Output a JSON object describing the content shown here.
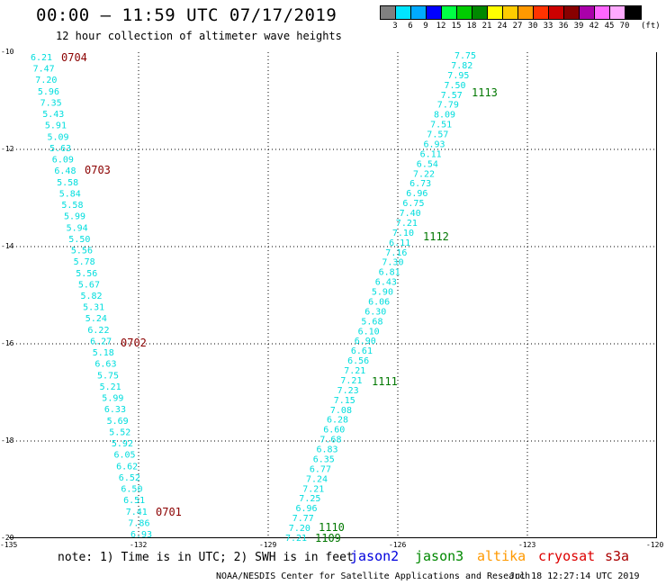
{
  "header": {
    "title": "00:00 – 11:59 UTC 07/17/2019",
    "subtitle": "12 hour collection of altimeter wave heights"
  },
  "colorbar": {
    "colors": [
      "#808080",
      "#00e5ff",
      "#00aaff",
      "#0000ff",
      "#00ff44",
      "#00cc00",
      "#008800",
      "#ffff00",
      "#ffcc00",
      "#ff9900",
      "#ff3300",
      "#cc0000",
      "#880000",
      "#aa00aa",
      "#ff66ff",
      "#ffaaff",
      "#000000"
    ],
    "labels": [
      "3",
      "6",
      "9",
      "12",
      "15",
      "18",
      "21",
      "24",
      "27",
      "30",
      "33",
      "36",
      "39",
      "42",
      "45",
      "70"
    ],
    "unit": "(ft)"
  },
  "axes": {
    "lat_labels": [
      "-10",
      "-12",
      "-14",
      "-16",
      "-18",
      "-20"
    ],
    "lon_labels": [
      "-135",
      "-132",
      "-129",
      "-126",
      "-123",
      "-120"
    ]
  },
  "tracks": [
    {
      "satellite": "jason3",
      "color": "#00dddd",
      "values": [
        "6.21",
        "7.47",
        "7.20",
        "5.96",
        "7.35",
        "5.43",
        "5.91",
        "5.09",
        "5.63",
        "6.09",
        "6.48",
        "5.58",
        "5.84",
        "5.58",
        "5.99",
        "5.94",
        "5.50",
        "5.56",
        "5.78",
        "5.56",
        "5.67",
        "5.82",
        "5.31",
        "5.24",
        "6.22",
        "6.27",
        "5.18",
        "6.63",
        "5.75",
        "5.21",
        "5.99",
        "6.33",
        "5.69",
        "5.52",
        "5.92",
        "6.05",
        "6.62",
        "6.52",
        "6.50",
        "6.51",
        "7.41",
        "7.86",
        "6.93"
      ],
      "time_labels": [
        {
          "text": "0704",
          "color": "#8b0000"
        },
        {
          "text": "0703",
          "color": "#8b0000"
        },
        {
          "text": "0702",
          "color": "#8b0000"
        },
        {
          "text": "0701",
          "color": "#8b0000"
        }
      ]
    },
    {
      "satellite": "jason3",
      "color": "#00dddd",
      "values": [
        "7.75",
        "7.82",
        "7.95",
        "7.50",
        "7.57",
        "7.79",
        "8.09",
        "7.51",
        "7.57",
        "6.93",
        "6.11",
        "6.54",
        "7.22",
        "6.73",
        "6.96",
        "6.75",
        "7.40",
        "7.21",
        "7.10",
        "6.11",
        "7.16",
        "7.30",
        "6.81",
        "6.43",
        "5.90",
        "6.06",
        "6.30",
        "5.68",
        "6.10",
        "6.90",
        "6.61",
        "6.56",
        "7.21",
        "7.21",
        "7.23",
        "7.15",
        "7.08",
        "6.28",
        "6.60",
        "7.68",
        "6.83",
        "6.35",
        "6.77",
        "7.24",
        "7.21",
        "7.25",
        "6.96",
        "7.77",
        "7.20",
        "7.21"
      ],
      "time_labels": [
        {
          "text": "1113",
          "color": "#007700"
        },
        {
          "text": "1112",
          "color": "#007700"
        },
        {
          "text": "1111",
          "color": "#007700"
        },
        {
          "text": "1110",
          "color": "#007700"
        },
        {
          "text": "1109",
          "color": "#007700"
        }
      ]
    }
  ],
  "footer": {
    "note": "note: 1) Time is in UTC; 2) SWH is in feet",
    "legend": [
      {
        "name": "jason2",
        "color": "#0000dd"
      },
      {
        "name": "jason3",
        "color": "#008800"
      },
      {
        "name": "altika",
        "color": "#ff9900"
      },
      {
        "name": "cryosat",
        "color": "#dd0000"
      },
      {
        "name": "s3a",
        "color": "#aa0000"
      }
    ],
    "credit": "NOAA/NESDIS Center for Satellite Applications and Research",
    "timestamp": "Jul 18 12:27:14 UTC 2019"
  }
}
